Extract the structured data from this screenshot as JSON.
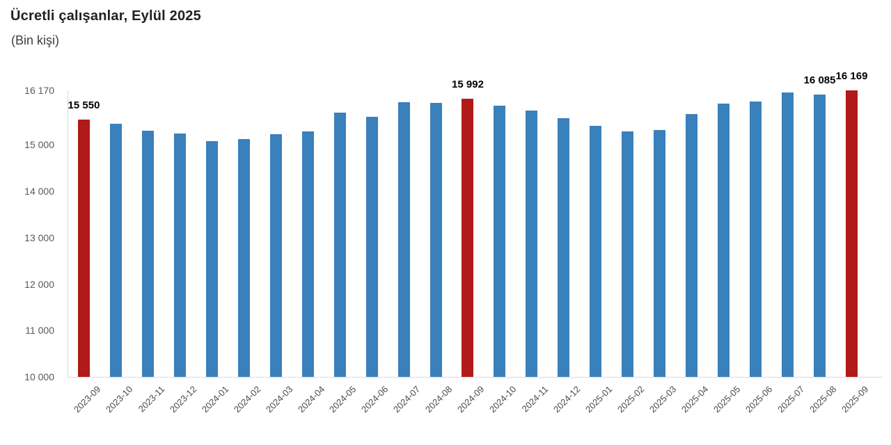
{
  "header": {
    "title": "Ücretli çalışanlar, Eylül 2025",
    "subtitle": "(Bin kişi)"
  },
  "chart_data": {
    "type": "bar",
    "title": "Ücretli çalışanlar, Eylül 2025",
    "subtitle": "(Bin kişi)",
    "unit": "Bin kişi",
    "categories": [
      "2023-09",
      "2023-10",
      "2023-11",
      "2023-12",
      "2024-01",
      "2024-02",
      "2024-03",
      "2024-04",
      "2024-05",
      "2024-06",
      "2024-07",
      "2024-08",
      "2024-09",
      "2024-10",
      "2024-11",
      "2024-12",
      "2025-01",
      "2025-02",
      "2025-03",
      "2025-04",
      "2025-05",
      "2025-06",
      "2025-07",
      "2025-08",
      "2025-09"
    ],
    "values": [
      15550,
      15455,
      15300,
      15250,
      15085,
      15125,
      15225,
      15290,
      15690,
      15605,
      15915,
      15905,
      15992,
      15845,
      15735,
      15570,
      15410,
      15290,
      15320,
      15665,
      15885,
      15930,
      16130,
      16085,
      16169
    ],
    "highlighted_categories": [
      "2023-09",
      "2024-09",
      "2025-09"
    ],
    "data_labels": [
      {
        "category": "2023-09",
        "text": "15 550"
      },
      {
        "category": "2024-09",
        "text": "15 992"
      },
      {
        "category": "2025-08",
        "text": "16 085"
      },
      {
        "category": "2025-09",
        "text": "16 169"
      }
    ],
    "y_ticks": [
      {
        "value": 16170,
        "label": "16 170"
      },
      {
        "value": 15000,
        "label": "15 000"
      },
      {
        "value": 14000,
        "label": "14 000"
      },
      {
        "value": 13000,
        "label": "13 000"
      },
      {
        "value": 12000,
        "label": "12 000"
      },
      {
        "value": 11000,
        "label": "11 000"
      },
      {
        "value": 10000,
        "label": "10 000"
      }
    ],
    "ylim": [
      10000,
      16170
    ],
    "bar_color": "#3A80BC",
    "highlight_color": "#B01A17",
    "axis_color": "#d9d9d9",
    "grid": false,
    "legend": false
  }
}
